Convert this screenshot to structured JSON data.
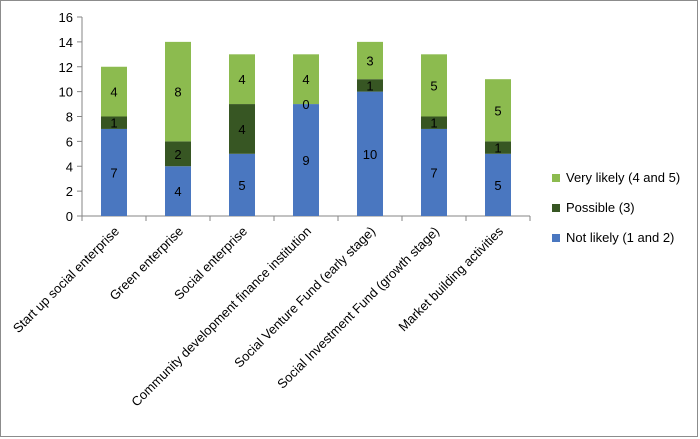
{
  "chart_data": {
    "type": "bar",
    "stacked": true,
    "categories": [
      "Start up social enterprise",
      "Green enterprise",
      "Social enterprise",
      "Community development finance institution",
      "Social Venture Fund  (early stage)",
      "Social Investment Fund (growth stage)",
      "Market building activities"
    ],
    "series": [
      {
        "name": "Not likely (1 and 2)",
        "color": "#4a77c0",
        "values": [
          7,
          4,
          5,
          9,
          10,
          7,
          5
        ]
      },
      {
        "name": "Possible (3)",
        "color": "#375623",
        "values": [
          1,
          2,
          4,
          0,
          1,
          1,
          1
        ]
      },
      {
        "name": "Very likely (4 and 5)",
        "color": "#8cbb4f",
        "values": [
          4,
          8,
          4,
          4,
          3,
          5,
          5
        ]
      }
    ],
    "ylim": [
      0,
      16
    ],
    "yticks": [
      0,
      2,
      4,
      6,
      8,
      10,
      12,
      14,
      16
    ],
    "grid": false,
    "legend": "right",
    "data_labels": true,
    "title": "",
    "xlabel": "",
    "ylabel": ""
  }
}
